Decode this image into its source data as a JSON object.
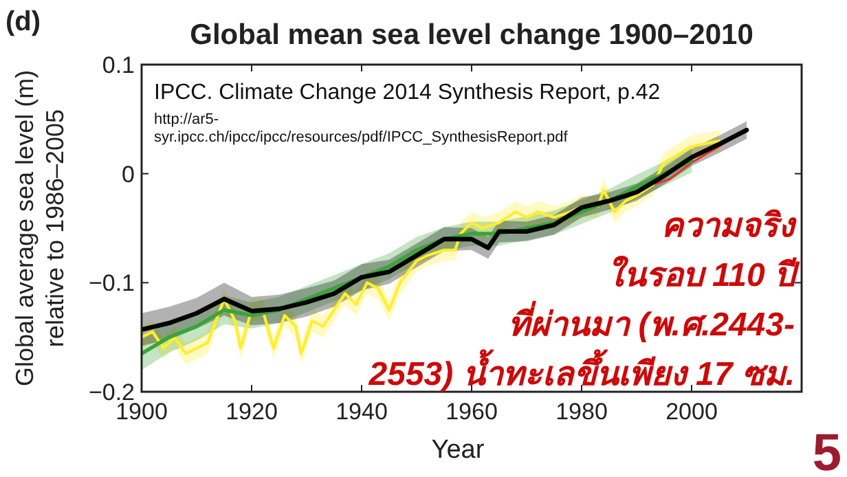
{
  "chart_data": {
    "type": "line",
    "title": "Global mean sea level change 1900–2010",
    "xlabel": "Year",
    "ylabel": "Global average sea level (m)\nrelative to 1986–2005",
    "xlim": [
      1900,
      2020
    ],
    "xticks": [
      1900,
      1920,
      1940,
      1960,
      1980,
      2000
    ],
    "ylim": [
      -0.2,
      0.1
    ],
    "yticks": [
      {
        "value": -0.2,
        "label": "−0.2"
      },
      {
        "value": -0.1,
        "label": "−0.1"
      },
      0,
      0.1
    ],
    "grid": false,
    "annotations": [
      "(d)",
      "IPCC. Climate Change 2014 Synthesis Report, p.42",
      "http://ar5-\nsyr.ipcc.ch/ipcc/ipcc/resources/pdf/IPCC_SynthesisReport.pdf",
      "ความจริง\nในรอบ 110 ปี\nที่ผ่านมา (พ.ศ.2443-\n2553) น้ำทะเลขึ้นเพียง 17 ซม.",
      "5"
    ],
    "series": [
      {
        "color": "#000000",
        "x": [
          1900,
          1905,
          1910,
          1915,
          1920,
          1925,
          1930,
          1935,
          1940,
          1945,
          1950,
          1955,
          1960,
          1963,
          1965,
          1970,
          1975,
          1980,
          1985,
          1990,
          1995,
          2000,
          2005,
          2010
        ],
        "values": [
          -0.143,
          -0.137,
          -0.128,
          -0.115,
          -0.126,
          -0.124,
          -0.118,
          -0.11,
          -0.095,
          -0.09,
          -0.075,
          -0.06,
          -0.06,
          -0.068,
          -0.053,
          -0.053,
          -0.047,
          -0.031,
          -0.025,
          -0.017,
          -0.002,
          0.015,
          0.027,
          0.04
        ],
        "lower": [
          -0.158,
          -0.152,
          -0.142,
          -0.13,
          -0.139,
          -0.137,
          -0.131,
          -0.122,
          -0.107,
          -0.101,
          -0.086,
          -0.071,
          -0.07,
          -0.078,
          -0.063,
          -0.062,
          -0.056,
          -0.04,
          -0.033,
          -0.025,
          -0.01,
          0.007,
          0.019,
          0.032
        ],
        "upper": [
          -0.128,
          -0.122,
          -0.114,
          -0.1,
          -0.113,
          -0.111,
          -0.105,
          -0.098,
          -0.083,
          -0.079,
          -0.064,
          -0.049,
          -0.05,
          -0.058,
          -0.043,
          -0.044,
          -0.038,
          -0.022,
          -0.017,
          -0.009,
          0.006,
          0.023,
          0.035,
          0.048
        ]
      },
      {
        "color": "#3aa43a",
        "x": [
          1900,
          1905,
          1910,
          1915,
          1920,
          1925,
          1930,
          1935,
          1940,
          1945,
          1950,
          1955,
          1960,
          1965,
          1970,
          1975,
          1980,
          1985,
          1990,
          1995,
          2000
        ],
        "values": [
          -0.165,
          -0.15,
          -0.14,
          -0.125,
          -0.13,
          -0.125,
          -0.115,
          -0.105,
          -0.095,
          -0.085,
          -0.07,
          -0.06,
          -0.055,
          -0.055,
          -0.05,
          -0.045,
          -0.035,
          -0.025,
          -0.012,
          0,
          0.012
        ],
        "lower": [
          -0.18,
          -0.164,
          -0.153,
          -0.138,
          -0.142,
          -0.137,
          -0.127,
          -0.117,
          -0.107,
          -0.097,
          -0.082,
          -0.071,
          -0.066,
          -0.066,
          -0.061,
          -0.056,
          -0.046,
          -0.036,
          -0.023,
          -0.011,
          0.001
        ],
        "upper": [
          -0.15,
          -0.136,
          -0.127,
          -0.112,
          -0.118,
          -0.113,
          -0.103,
          -0.093,
          -0.083,
          -0.073,
          -0.058,
          -0.049,
          -0.044,
          -0.044,
          -0.039,
          -0.034,
          -0.024,
          -0.014,
          -0.001,
          0.011,
          0.023
        ]
      },
      {
        "color": "#ffee33",
        "x": [
          1900,
          1902,
          1904,
          1906,
          1908,
          1910,
          1912,
          1915,
          1917,
          1918,
          1920,
          1922,
          1924,
          1926,
          1928,
          1929,
          1931,
          1933,
          1935,
          1937,
          1939,
          1941,
          1943,
          1945,
          1947,
          1950,
          1952,
          1955,
          1957,
          1958,
          1960,
          1962,
          1965,
          1968,
          1970,
          1972,
          1975,
          1978,
          1980,
          1983,
          1984,
          1986,
          1988,
          1990,
          1993,
          1995,
          2000,
          2005
        ],
        "values": [
          -0.15,
          -0.145,
          -0.16,
          -0.15,
          -0.165,
          -0.16,
          -0.155,
          -0.115,
          -0.135,
          -0.16,
          -0.125,
          -0.125,
          -0.16,
          -0.13,
          -0.14,
          -0.165,
          -0.135,
          -0.14,
          -0.125,
          -0.11,
          -0.12,
          -0.1,
          -0.105,
          -0.125,
          -0.1,
          -0.08,
          -0.075,
          -0.07,
          -0.07,
          -0.055,
          -0.045,
          -0.05,
          -0.045,
          -0.035,
          -0.04,
          -0.035,
          -0.04,
          -0.035,
          -0.03,
          -0.03,
          -0.015,
          -0.035,
          -0.025,
          -0.02,
          -0.01,
          0.01,
          0.025,
          0.03
        ],
        "lower": [
          -0.16,
          -0.155,
          -0.17,
          -0.16,
          -0.175,
          -0.17,
          -0.165,
          -0.125,
          -0.145,
          -0.17,
          -0.135,
          -0.135,
          -0.17,
          -0.14,
          -0.15,
          -0.175,
          -0.145,
          -0.15,
          -0.135,
          -0.12,
          -0.13,
          -0.11,
          -0.115,
          -0.135,
          -0.11,
          -0.09,
          -0.085,
          -0.08,
          -0.08,
          -0.065,
          -0.055,
          -0.06,
          -0.055,
          -0.045,
          -0.05,
          -0.045,
          -0.05,
          -0.045,
          -0.04,
          -0.04,
          -0.025,
          -0.045,
          -0.035,
          -0.03,
          -0.02,
          0,
          0.015,
          0.02
        ],
        "upper": [
          -0.14,
          -0.135,
          -0.15,
          -0.14,
          -0.155,
          -0.15,
          -0.145,
          -0.105,
          -0.125,
          -0.15,
          -0.115,
          -0.115,
          -0.15,
          -0.12,
          -0.13,
          -0.155,
          -0.125,
          -0.13,
          -0.115,
          -0.1,
          -0.11,
          -0.09,
          -0.095,
          -0.115,
          -0.09,
          -0.07,
          -0.065,
          -0.06,
          -0.06,
          -0.045,
          -0.035,
          -0.04,
          -0.035,
          -0.025,
          -0.03,
          -0.025,
          -0.03,
          -0.025,
          -0.02,
          -0.02,
          -0.005,
          -0.025,
          -0.015,
          -0.01,
          0,
          0.02,
          0.035,
          0.04
        ]
      },
      {
        "color": "#e8321e",
        "x": [
          1993,
          1996,
          2000,
          2005,
          2010
        ],
        "values": [
          -0.01,
          -0.005,
          0.01,
          0.025,
          0.04
        ]
      }
    ]
  }
}
